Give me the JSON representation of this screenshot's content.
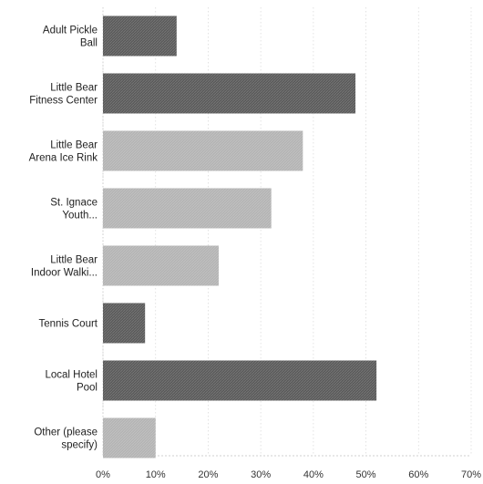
{
  "chart_data": {
    "type": "bar",
    "orientation": "horizontal",
    "title": "",
    "xlabel": "",
    "ylabel": "",
    "categories": [
      [
        "Adult Pickle",
        "Ball"
      ],
      [
        "Little Bear",
        "Fitness Center"
      ],
      [
        "Little Bear",
        "Arena Ice Rink"
      ],
      [
        "St. Ignace",
        "Youth..."
      ],
      [
        "Little Bear",
        "Indoor Walki..."
      ],
      [
        "Tennis Court"
      ],
      [
        "Local Hotel",
        "Pool"
      ],
      [
        "Other (please",
        "specify)"
      ]
    ],
    "values": [
      14,
      48,
      38,
      32,
      22,
      8,
      52,
      10
    ],
    "xlim": [
      0,
      70
    ],
    "xticks": [
      0,
      10,
      20,
      30,
      40,
      50,
      60,
      70
    ],
    "xtick_labels": [
      "0%",
      "10%",
      "20%",
      "30%",
      "40%",
      "50%",
      "60%",
      "70%"
    ],
    "grid": true,
    "colors": {
      "dark": "#5a5a5a",
      "medium": "#b4b4b4",
      "grid": "#dcdcdc"
    },
    "bar_color_keys": [
      "dark",
      "dark",
      "medium",
      "medium",
      "medium",
      "dark",
      "dark",
      "medium"
    ]
  }
}
